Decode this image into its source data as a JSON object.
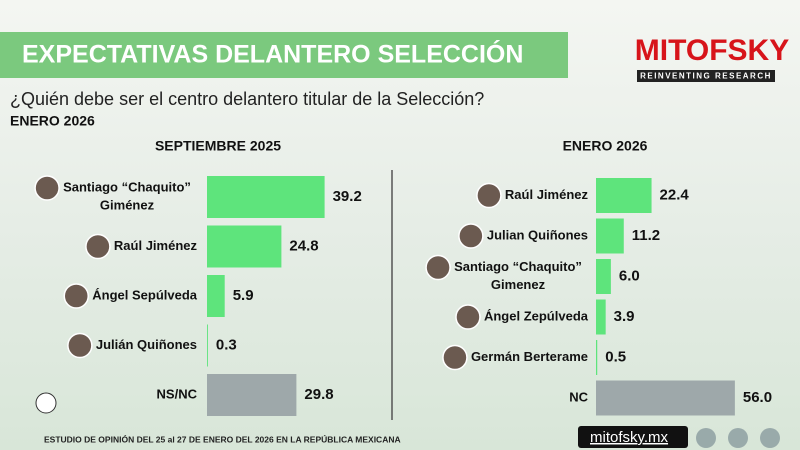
{
  "header": {
    "title": "EXPECTATIVAS DELANTERO SELECCIÓN",
    "question": "¿Quién debe ser el centro delantero titular de la Selección?",
    "period": "ENERO 2026",
    "brand": "MITOFSKY",
    "tagline": "REINVENTING RESEARCH"
  },
  "footer": {
    "note": "ESTUDIO DE OPINIÓN DEL 25 al 27 DE ENERO DEL 2026 EN LA REPÚBLICA MEXICANA",
    "site": "mitofsky.mx"
  },
  "chart_data": [
    {
      "type": "bar",
      "title": "SEPTIEMBRE 2025",
      "categories": [
        [
          "Santiago “Chaquito”",
          "Giménez"
        ],
        [
          "Raúl Jiménez"
        ],
        [
          "Ángel Sepúlveda"
        ],
        [
          "Julián Quiñones"
        ],
        [
          "NS/NC"
        ]
      ],
      "values": [
        39.2,
        24.8,
        5.9,
        0.3,
        29.8
      ],
      "value_labels": [
        "39.2",
        "24.8",
        "5.9",
        "0.3",
        "29.8"
      ],
      "colors": [
        "#5ee47c",
        "#5ee47c",
        "#5ee47c",
        "#5ee47c",
        "#9ea8aa"
      ]
    },
    {
      "type": "bar",
      "title": "ENERO 2026",
      "categories": [
        [
          "Raúl Jiménez"
        ],
        [
          "Julian Quiñones"
        ],
        [
          "Santiago “Chaquito”",
          "Gimenez"
        ],
        [
          "Ángel Zepúlveda"
        ],
        [
          "Germán Berterame"
        ],
        [
          "NC"
        ]
      ],
      "values": [
        22.4,
        11.2,
        6.0,
        3.9,
        0.5,
        56.0
      ],
      "value_labels": [
        "22.4",
        "11.2",
        "6.0",
        "3.9",
        "0.5",
        "56.0"
      ],
      "colors": [
        "#5ee47c",
        "#5ee47c",
        "#5ee47c",
        "#5ee47c",
        "#5ee47c",
        "#9ea8aa"
      ]
    }
  ]
}
